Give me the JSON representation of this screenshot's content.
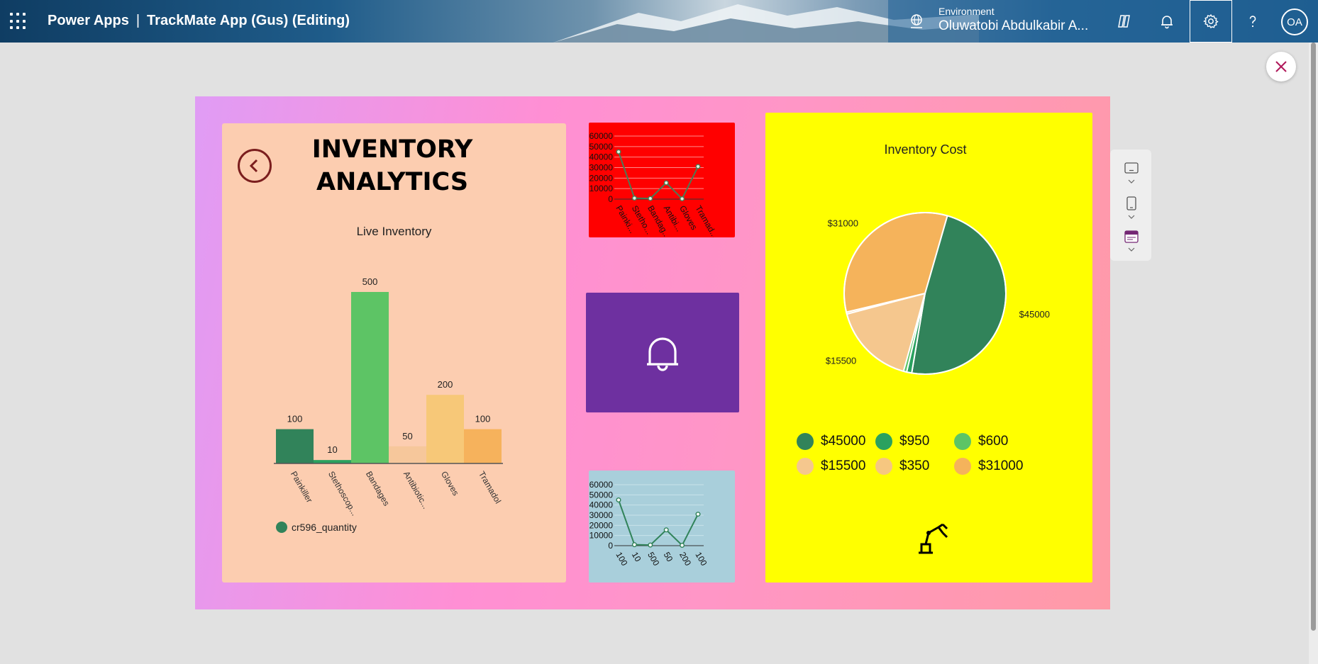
{
  "topbar": {
    "product": "Power Apps",
    "separator": "|",
    "app_name": "TrackMate App (Gus) (Editing)",
    "env_label": "Environment",
    "env_name": "Oluwatobi Abdulkabir A...",
    "avatar_initials": "OA"
  },
  "canvas": {
    "title_line1": "INVENTORY",
    "title_line2": "ANALYTICS",
    "bar_chart_title": "Live Inventory",
    "pie_chart_title": "Inventory Cost"
  },
  "chart_data": [
    {
      "type": "bar",
      "title": "Live Inventory",
      "categories": [
        "Painkiller",
        "Stethoscop...",
        "Bandages",
        "Antibiotic...",
        "Gloves",
        "Tramadol"
      ],
      "series": [
        {
          "name": "cr596_quantity",
          "values": [
            100,
            10,
            500,
            50,
            200,
            100
          ]
        }
      ],
      "colors": [
        "#31835a",
        "#2aa15f",
        "#5dc465",
        "#f6c79b",
        "#f7c878",
        "#f6b25c"
      ],
      "ylim": [
        0,
        500
      ]
    },
    {
      "type": "line",
      "categories": [
        "Painki...",
        "Stetho...",
        "Bandag...",
        "Antibi...",
        "Gloves",
        "Tramad..."
      ],
      "values": [
        45000,
        950,
        600,
        15500,
        350,
        31000
      ],
      "yticks": [
        "60000",
        "50000",
        "40000",
        "30000",
        "20000",
        "10000",
        "0"
      ],
      "ylim": [
        0,
        60000
      ],
      "grid": true
    },
    {
      "type": "line",
      "categories": [
        "100",
        "10",
        "500",
        "50",
        "200",
        "100"
      ],
      "values": [
        45000,
        950,
        600,
        15500,
        350,
        31000
      ],
      "yticks": [
        "60000",
        "50000",
        "40000",
        "30000",
        "20000",
        "10000",
        "0"
      ],
      "ylim": [
        0,
        60000
      ],
      "grid": true
    },
    {
      "type": "pie",
      "title": "Inventory Cost",
      "labels": [
        "$45000",
        "$950",
        "$600",
        "$15500",
        "$350",
        "$31000"
      ],
      "values": [
        45000,
        950,
        600,
        15500,
        350,
        31000
      ],
      "colors": [
        "#31835a",
        "#2aa15f",
        "#5dc465",
        "#f5c78e",
        "#f6c780",
        "#f5b35b"
      ]
    }
  ],
  "legend": {
    "items": [
      {
        "label": "$45000",
        "color": "#31835a"
      },
      {
        "label": "$950",
        "color": "#2aa15f"
      },
      {
        "label": "$600",
        "color": "#5dc465"
      },
      {
        "label": "$15500",
        "color": "#f5c78e"
      },
      {
        "label": "$350",
        "color": "#f6c780"
      },
      {
        "label": "$31000",
        "color": "#f5b35b"
      }
    ]
  },
  "icons": {
    "waffle": "app-launcher-icon",
    "environment": "environment-globe-icon",
    "copilot": "copilot-icon",
    "notifications": "bell-icon",
    "settings": "gear-icon",
    "help": "help-icon",
    "close": "close-icon",
    "back": "back-arrow-icon",
    "purple_card": "bell-icon",
    "robot": "robotic-arm-icon"
  }
}
